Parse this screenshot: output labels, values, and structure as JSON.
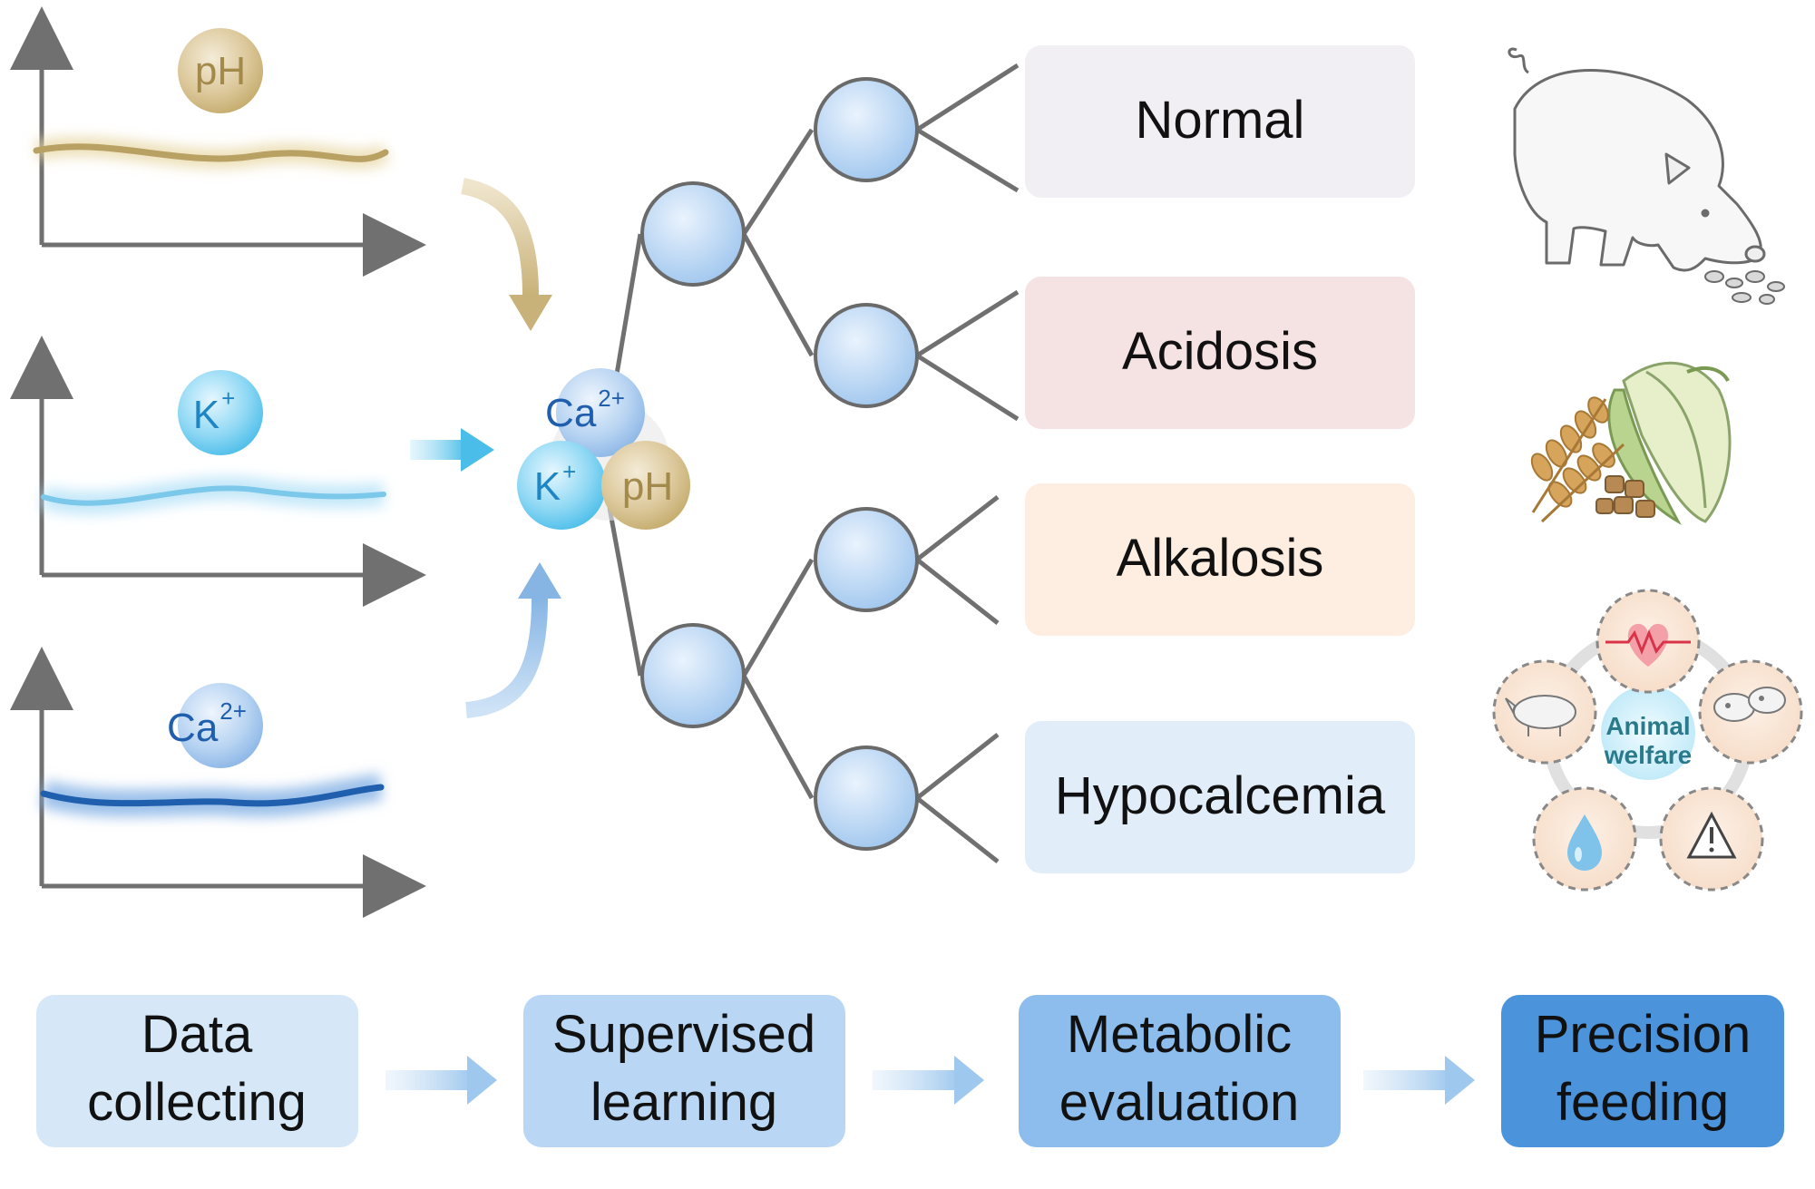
{
  "sensors": [
    {
      "label": "pH",
      "superscript": "",
      "color": "#c4ab6b"
    },
    {
      "label": "K",
      "superscript": "+",
      "color": "#5cc3ea"
    },
    {
      "label": "Ca",
      "superscript": "2+",
      "color": "#1f5fae"
    }
  ],
  "fusion": {
    "ca_label": "Ca",
    "ca_sup": "2+",
    "k_label": "K",
    "k_sup": "+",
    "ph_label": "pH"
  },
  "classes": [
    {
      "label": "Normal",
      "color": "#f1eff4"
    },
    {
      "label": "Acidosis",
      "color": "#f5e3e3"
    },
    {
      "label": "Alkalosis",
      "color": "#fdeee1"
    },
    {
      "label": "Hypocalcemia",
      "color": "#e1edf9"
    }
  ],
  "welfare": {
    "line1": "Animal",
    "line2": "welfare"
  },
  "workflow": [
    {
      "line1": "Data",
      "line2": "collecting",
      "color": "#d6e8f8"
    },
    {
      "line1": "Supervised",
      "line2": "learning",
      "color": "#b9d7f4"
    },
    {
      "line1": "Metabolic",
      "line2": "evaluation",
      "color": "#8dbdec"
    },
    {
      "line1": "Precision",
      "line2": "feeding",
      "color": "#4b94dc"
    }
  ],
  "icons": [
    "pig-icon",
    "grain-corn-icon",
    "heart-icon",
    "pigs-icon",
    "water-drop-icon",
    "warning-icon"
  ]
}
